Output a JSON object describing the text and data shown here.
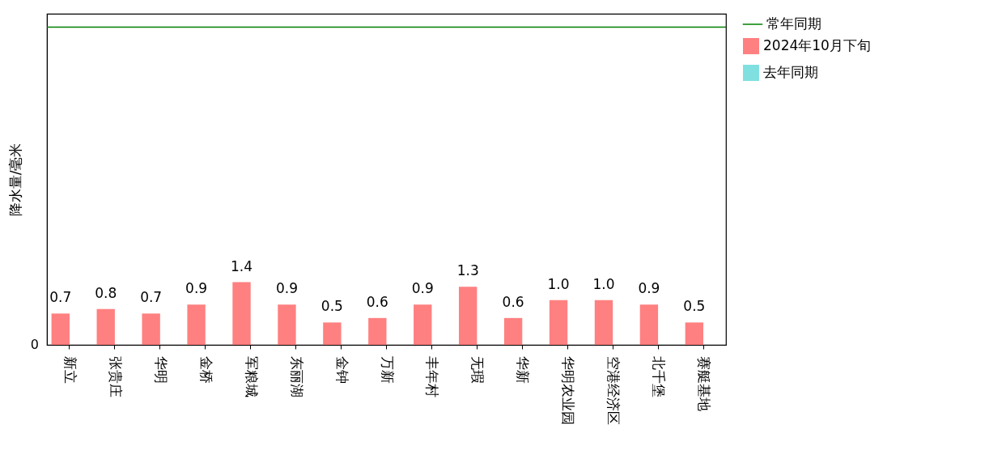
{
  "chart_data": {
    "type": "bar",
    "ylabel": "降水量/毫米",
    "categories": [
      "新立",
      "张贵庄",
      "华明",
      "金桥",
      "军粮城",
      "东丽湖",
      "金钟",
      "万新",
      "丰年村",
      "无瑕",
      "华新",
      "华明农业园",
      "空港经济区",
      "北千堡",
      "赛艇基地"
    ],
    "series": [
      {
        "name": "2024年10月下旬",
        "color": "#ff8080",
        "values": [
          0.7,
          0.8,
          0.7,
          0.9,
          1.4,
          0.9,
          0.5,
          0.6,
          0.9,
          1.3,
          0.6,
          1.0,
          1.0,
          0.9,
          0.5
        ],
        "value_labels": [
          "0.7",
          "0.8",
          "0.7",
          "0.9",
          "1.4",
          "0.9",
          "0.5",
          "0.6",
          "0.9",
          "1.3",
          "0.6",
          "1.0",
          "1.0",
          "0.9",
          "0.5"
        ]
      },
      {
        "name": "去年同期",
        "color": "#80e0e0",
        "values": [
          null,
          null,
          null,
          null,
          null,
          null,
          null,
          null,
          null,
          null,
          null,
          null,
          null,
          null,
          null
        ]
      }
    ],
    "ref_lines": [
      {
        "axis": "y",
        "value": 7.1,
        "label": "常年同期",
        "color": "#008000",
        "line_style": "solid"
      }
    ],
    "ylim": [
      0,
      7.4
    ],
    "annotations": [
      "0"
    ],
    "grid": false,
    "legend": "top right"
  }
}
